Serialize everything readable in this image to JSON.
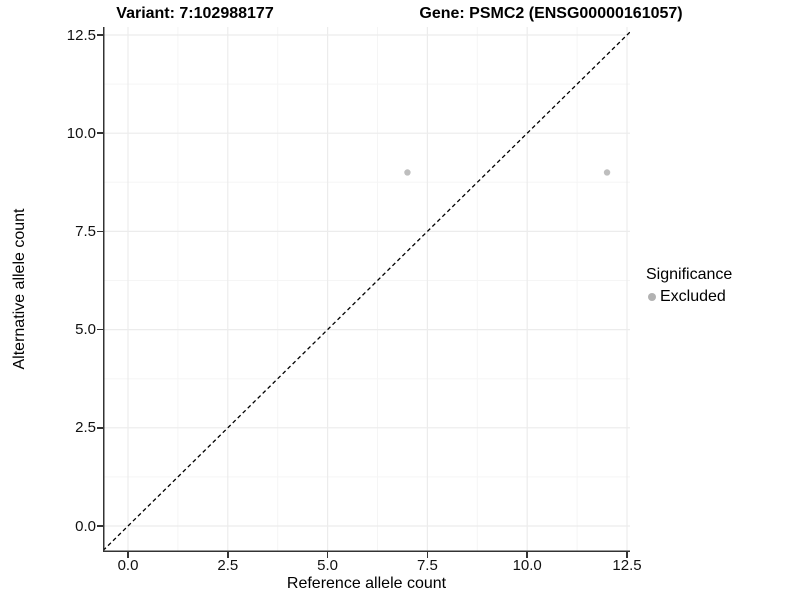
{
  "header": {
    "title_variant": "Variant: 7:102988177",
    "title_gene": "Gene: PSMC2 (ENSG00000161057)"
  },
  "axes": {
    "x_label": "Reference allele count",
    "y_label": "Alternative allele count",
    "x_tick_labels": [
      "0.0",
      "2.5",
      "5.0",
      "7.5",
      "10.0",
      "12.5"
    ],
    "y_tick_labels": [
      "0.0",
      "2.5",
      "5.0",
      "7.5",
      "10.0",
      "12.5"
    ]
  },
  "legend": {
    "title": "Significance",
    "items": [
      {
        "label": "Excluded",
        "color": "#b2b2b2"
      }
    ]
  },
  "chart_data": {
    "type": "scatter",
    "title": "Variant: 7:102988177 | Gene: PSMC2 (ENSG00000161057)",
    "xlabel": "Reference allele count",
    "ylabel": "Alternative allele count",
    "xlim": [
      -0.65,
      12.6
    ],
    "ylim": [
      -0.65,
      12.7
    ],
    "xticks": [
      0,
      2.5,
      5,
      7.5,
      10,
      12.5
    ],
    "yticks": [
      0,
      2.5,
      5,
      7.5,
      10,
      12.5
    ],
    "grid": {
      "major_interval": 2.5,
      "minor_interval": 1.25,
      "major_color": "#ececec",
      "minor_color": "#f5f5f5"
    },
    "series": [
      {
        "name": "Excluded",
        "color": "#bebebe",
        "marker": "circle",
        "points": [
          {
            "x": 7,
            "y": 9
          },
          {
            "x": 12,
            "y": 9
          }
        ]
      }
    ],
    "reference_line": {
      "kind": "identity y=x",
      "style": "dashed",
      "color": "#000000"
    },
    "legend_position": "right"
  },
  "colors": {
    "axis_line": "#333333",
    "tick_mark": "#333333",
    "tick_text": "#111111"
  }
}
